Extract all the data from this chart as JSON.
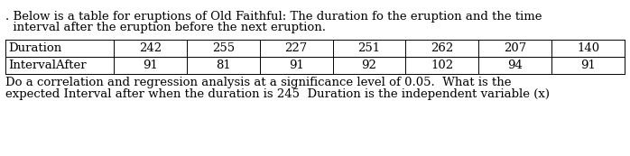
{
  "intro_line1": ". Below is a table for eruptions of Old Faithful: The duration fo the eruption and the time",
  "intro_line2": "  interval after the eruption before the next eruption.",
  "row1_label": "Duration",
  "row2_label": "IntervalAfter",
  "row1_values": [
    "242",
    "255",
    "227",
    "251",
    "262",
    "207",
    "140"
  ],
  "row2_values": [
    "91",
    "81",
    "91",
    "92",
    "102",
    "94",
    "91"
  ],
  "footer_line1": "Do a correlation and regression analysis at a significance level of 0.05.  What is the",
  "footer_line2": "expected Interval after when the duration is 245  Duration is the independent variable (x)",
  "bg_color": "#ffffff",
  "text_color": "#000000",
  "font_size": 9.5,
  "table_font_size": 9.5
}
